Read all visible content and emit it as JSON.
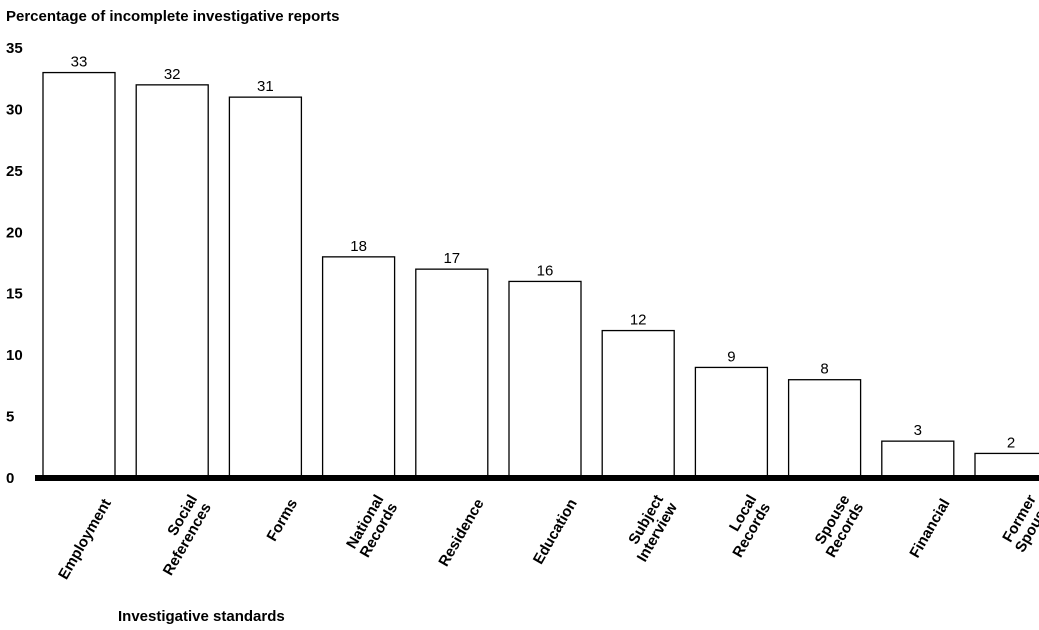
{
  "chart_data": {
    "type": "bar",
    "title": "Percentage of incomplete investigative reports",
    "xlabel": "Investigative standards",
    "ylabel": "",
    "categories": [
      [
        "Employment"
      ],
      [
        "Social",
        "References"
      ],
      [
        "Forms"
      ],
      [
        "National",
        "Records"
      ],
      [
        "Residence"
      ],
      [
        "Education"
      ],
      [
        "Subject",
        "Interview"
      ],
      [
        "Local",
        "Records"
      ],
      [
        "Spouse",
        "Records"
      ],
      [
        "Financial"
      ],
      [
        "Former",
        "Spouse"
      ]
    ],
    "values": [
      33,
      32,
      31,
      18,
      17,
      16,
      12,
      9,
      8,
      3,
      2
    ],
    "data_labels": [
      "33",
      "32",
      "31",
      "18",
      "17",
      "16",
      "12",
      "9",
      "8",
      "3",
      "2"
    ],
    "yticks": [
      "0",
      "5",
      "10",
      "15",
      "20",
      "25",
      "30",
      "35"
    ],
    "ylim": [
      0,
      35
    ],
    "grid": false,
    "legend": "none",
    "bar_fill": "#ffffff",
    "bar_stroke": "#000000"
  }
}
